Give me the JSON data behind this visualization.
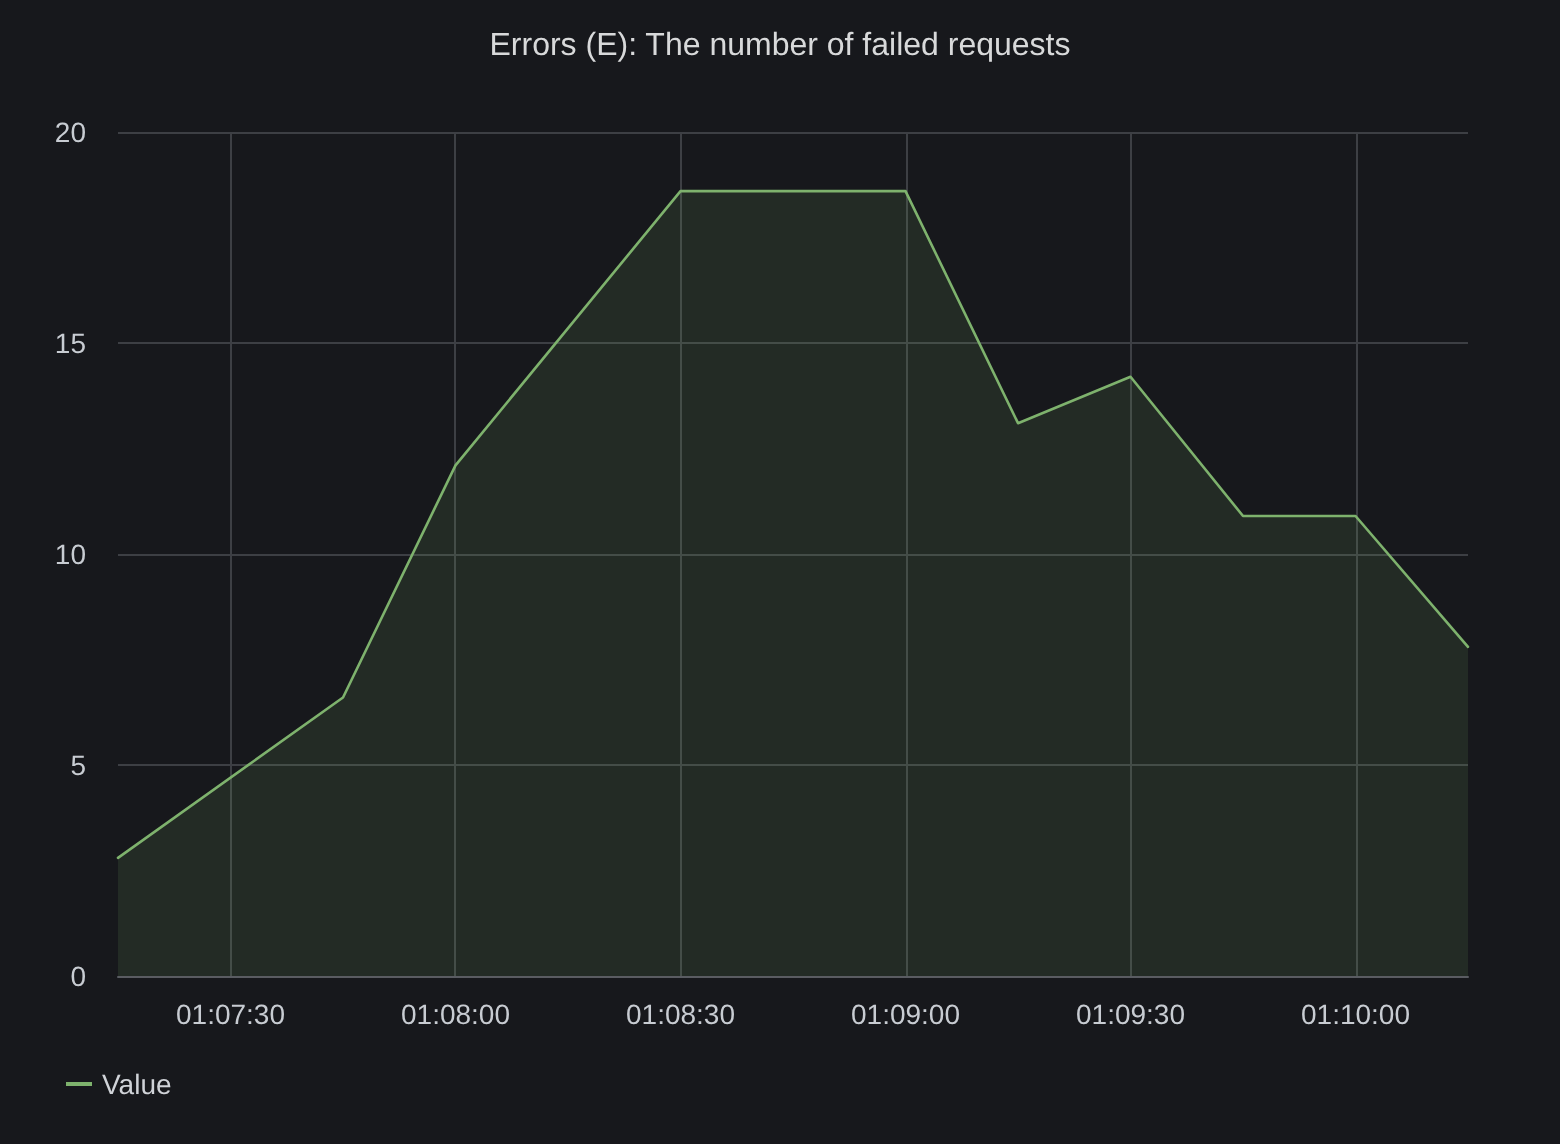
{
  "chart_data": {
    "type": "area",
    "title": "Errors (E): The number of failed requests",
    "x": [
      1.120833,
      1.129167,
      1.133333,
      1.141667,
      1.15,
      1.154167,
      1.158333,
      1.1625,
      1.166667,
      1.170833
    ],
    "series": [
      {
        "name": "Value",
        "color": "#7eb26d",
        "values": [
          2.8,
          6.6,
          12.1,
          18.6,
          18.6,
          13.1,
          14.2,
          10.9,
          10.9,
          7.8
        ]
      }
    ],
    "xlim": [
      1.120833,
      1.170833
    ],
    "xticks": [
      {
        "value": 1.125,
        "label": "01:07:30"
      },
      {
        "value": 1.133333,
        "label": "01:08:00"
      },
      {
        "value": 1.141667,
        "label": "01:08:30"
      },
      {
        "value": 1.15,
        "label": "01:09:00"
      },
      {
        "value": 1.158333,
        "label": "01:09:30"
      },
      {
        "value": 1.166667,
        "label": "01:10:00"
      }
    ],
    "ylim": [
      0,
      20
    ],
    "yticks": [
      0,
      5,
      10,
      15,
      20
    ],
    "grid": true,
    "legend": "bottom left",
    "marker": "none",
    "line_style": "solid"
  }
}
